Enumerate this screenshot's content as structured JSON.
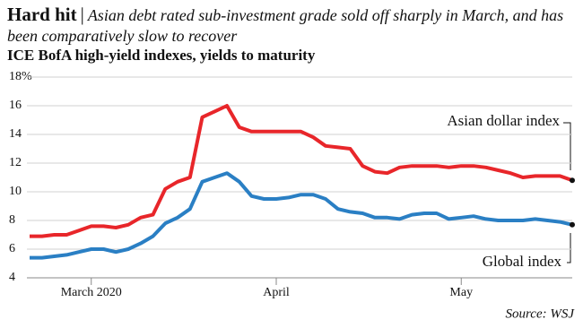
{
  "chart_data": {
    "type": "line",
    "title": "Hard hit",
    "subtitle": "Asian debt rated sub-investment grade sold off sharply in March, and has been comparatively slow to recover",
    "description": "ICE BofA high-yield indexes, yields to maturity",
    "source": "Source: WSJ",
    "categories": [
      null,
      null,
      null,
      null,
      null,
      "March 2020",
      null,
      null,
      null,
      null,
      null,
      null,
      null,
      null,
      null,
      null,
      null,
      null,
      null,
      null,
      "April",
      null,
      null,
      null,
      null,
      null,
      null,
      null,
      null,
      null,
      null,
      null,
      null,
      null,
      null,
      "May",
      null,
      null,
      null,
      null,
      null,
      null,
      null,
      null,
      null
    ],
    "series": [
      {
        "name": "Asian dollar index",
        "color": "#e8262a",
        "values": [
          6.9,
          6.9,
          7.0,
          7.0,
          7.3,
          7.6,
          7.6,
          7.5,
          7.7,
          8.2,
          8.4,
          10.2,
          10.7,
          11.0,
          15.2,
          15.6,
          16.0,
          14.5,
          14.2,
          14.2,
          14.2,
          14.2,
          14.2,
          13.8,
          13.2,
          13.1,
          13.0,
          11.8,
          11.4,
          11.3,
          11.7,
          11.8,
          11.8,
          11.8,
          11.7,
          11.8,
          11.8,
          11.7,
          11.5,
          11.3,
          11.0,
          11.1,
          11.1,
          11.1,
          10.8
        ]
      },
      {
        "name": "Global index",
        "color": "#2a7fc4",
        "values": [
          5.4,
          5.4,
          5.5,
          5.6,
          5.8,
          6.0,
          6.0,
          5.8,
          6.0,
          6.4,
          6.9,
          7.8,
          8.2,
          8.8,
          10.7,
          11.0,
          11.3,
          10.7,
          9.7,
          9.5,
          9.5,
          9.6,
          9.8,
          9.8,
          9.5,
          8.8,
          8.6,
          8.5,
          8.2,
          8.2,
          8.1,
          8.4,
          8.5,
          8.5,
          8.1,
          8.2,
          8.3,
          8.1,
          8.0,
          8.0,
          8.0,
          8.1,
          8.0,
          7.9,
          7.7
        ]
      }
    ],
    "ylim": [
      4,
      18
    ],
    "yticks": [
      4,
      6,
      8,
      10,
      12,
      14,
      16,
      {
        "value": 18,
        "label": "18%"
      }
    ],
    "grid": true
  }
}
